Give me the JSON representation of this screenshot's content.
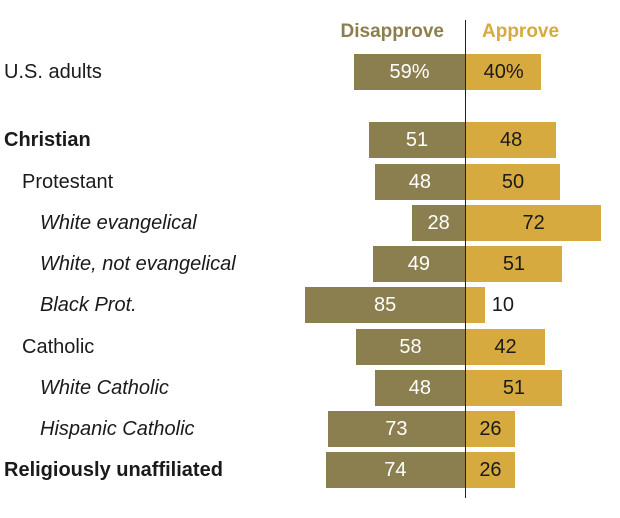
{
  "chart_data": {
    "type": "bar",
    "orientation": "horizontal-diverging",
    "series": [
      {
        "name": "Disapprove",
        "color": "#8c7f4f"
      },
      {
        "name": "Approve",
        "color": "#d7aa3f"
      }
    ],
    "rows": [
      {
        "label": "U.S. adults",
        "style": "normal",
        "indent": 0,
        "disapprove": 59,
        "approve": 40,
        "dis_label": "59%",
        "app_label": "40%"
      },
      {
        "label": "Christian",
        "style": "bold",
        "indent": 0,
        "disapprove": 51,
        "approve": 48,
        "dis_label": "51",
        "app_label": "48"
      },
      {
        "label": "Protestant",
        "style": "normal",
        "indent": 1,
        "disapprove": 48,
        "approve": 50,
        "dis_label": "48",
        "app_label": "50"
      },
      {
        "label": "White evangelical",
        "style": "italic",
        "indent": 2,
        "disapprove": 28,
        "approve": 72,
        "dis_label": "28",
        "app_label": "72"
      },
      {
        "label": "White, not evangelical",
        "style": "italic",
        "indent": 2,
        "disapprove": 49,
        "approve": 51,
        "dis_label": "49",
        "app_label": "51"
      },
      {
        "label": "Black Prot.",
        "style": "italic",
        "indent": 2,
        "disapprove": 85,
        "approve": 10,
        "dis_label": "85",
        "app_label": "10"
      },
      {
        "label": "Catholic",
        "style": "normal",
        "indent": 1,
        "disapprove": 58,
        "approve": 42,
        "dis_label": "58",
        "app_label": "42"
      },
      {
        "label": "White Catholic",
        "style": "italic",
        "indent": 2,
        "disapprove": 48,
        "approve": 51,
        "dis_label": "48",
        "app_label": "51"
      },
      {
        "label": "Hispanic Catholic",
        "style": "italic",
        "indent": 2,
        "disapprove": 73,
        "approve": 26,
        "dis_label": "73",
        "app_label": "26"
      },
      {
        "label": "Religiously unaffiliated",
        "style": "bold",
        "indent": 0,
        "disapprove": 74,
        "approve": 26,
        "dis_label": "74",
        "app_label": "26"
      }
    ]
  }
}
